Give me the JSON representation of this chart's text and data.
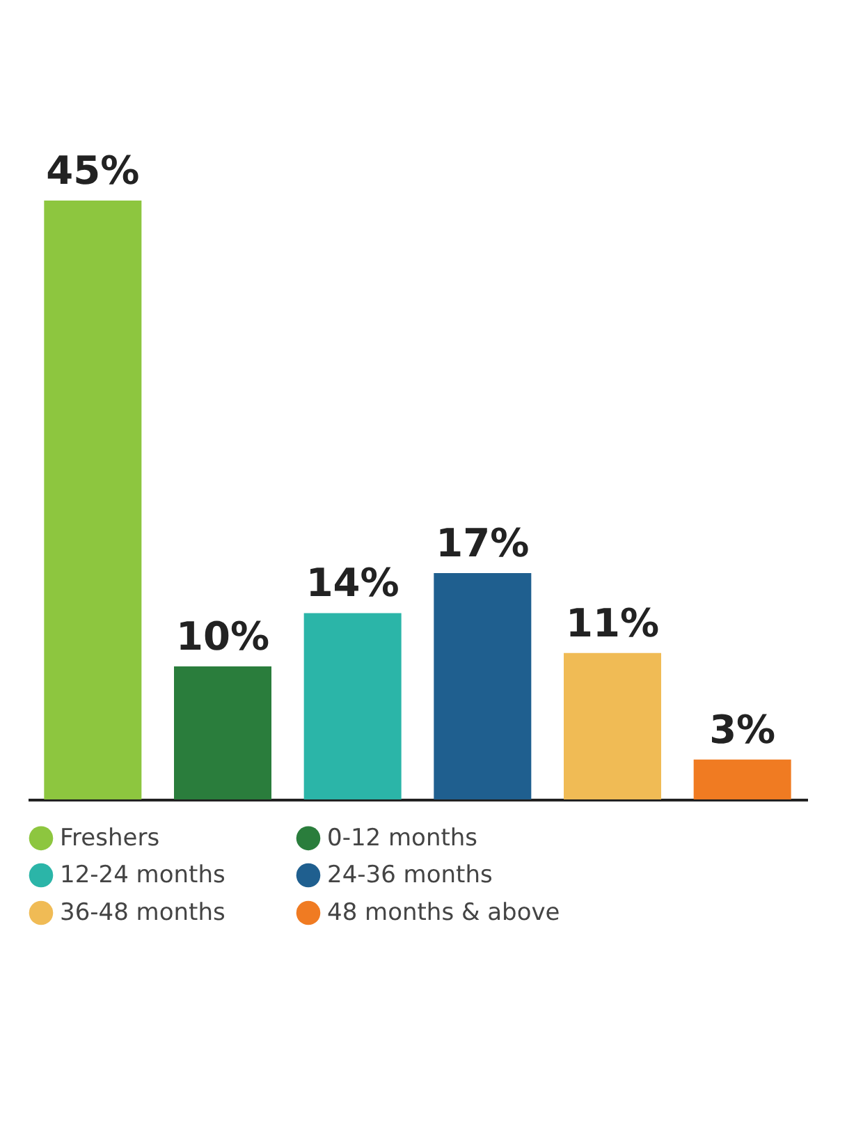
{
  "chart_data": {
    "type": "bar",
    "categories": [
      null,
      null,
      null,
      null,
      null,
      null
    ],
    "series": [
      {
        "name": "Freshers",
        "color": "#8dc63f",
        "values": [
          45,
          null,
          null,
          null,
          null,
          null
        ],
        "value_labels": [
          "45%",
          null,
          null,
          null,
          null,
          null
        ]
      },
      {
        "name": "0-12 months",
        "color": "#2a7d3c",
        "values": [
          null,
          10,
          null,
          null,
          null,
          null
        ],
        "value_labels": [
          null,
          "10%",
          null,
          null,
          null,
          null
        ]
      },
      {
        "name": "12-24 months",
        "color": "#2bb5a8",
        "values": [
          null,
          null,
          14,
          null,
          null,
          null
        ],
        "value_labels": [
          null,
          null,
          "14%",
          null,
          null,
          null
        ]
      },
      {
        "name": "24-36 months",
        "color": "#1f5f8f",
        "values": [
          null,
          null,
          null,
          17,
          null,
          null
        ],
        "value_labels": [
          null,
          null,
          null,
          "17%",
          null,
          null
        ]
      },
      {
        "name": "36-48 months",
        "color": "#f0bb55",
        "values": [
          null,
          null,
          null,
          null,
          11,
          null
        ],
        "value_labels": [
          null,
          null,
          null,
          null,
          "11%",
          null
        ]
      },
      {
        "name": "48 months & above",
        "color": "#f07b22",
        "values": [
          null,
          null,
          null,
          null,
          null,
          3
        ],
        "value_labels": [
          null,
          null,
          null,
          null,
          null,
          "3%"
        ]
      }
    ],
    "stacked": true,
    "legend": "bottom",
    "tick_labels": false
  }
}
